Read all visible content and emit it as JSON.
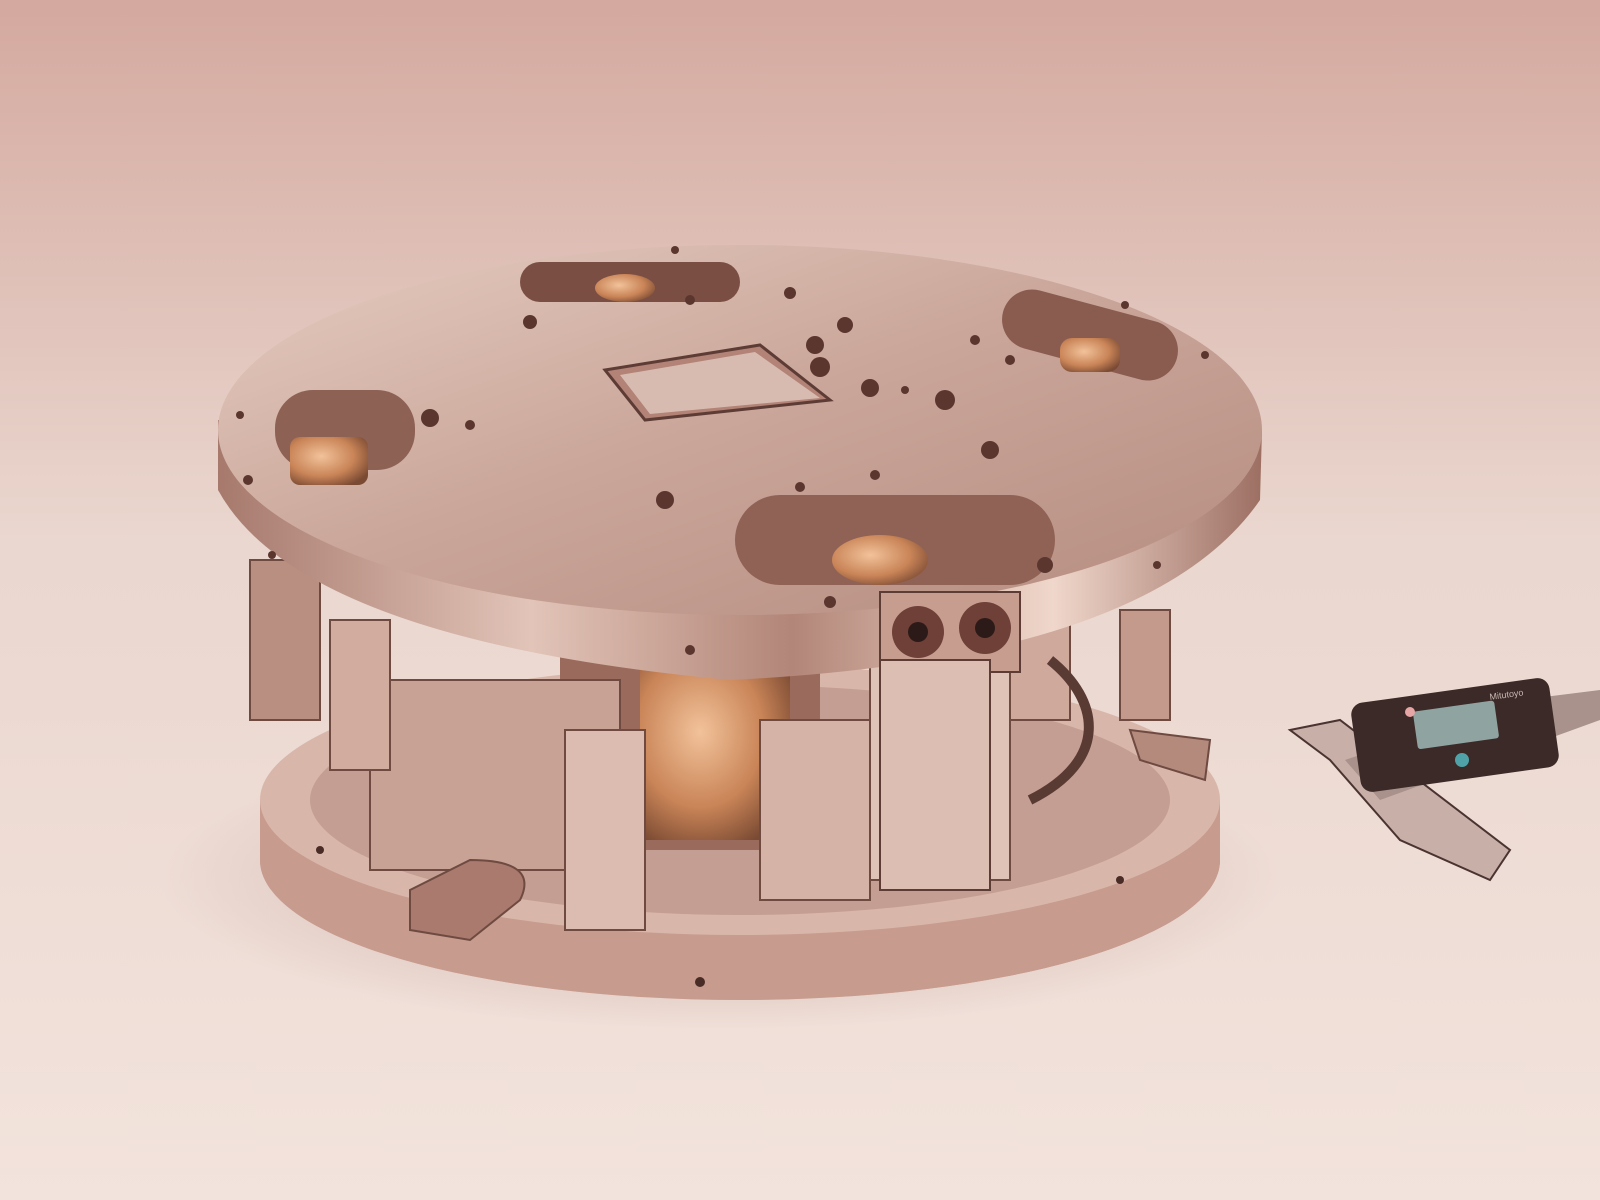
{
  "scene": {
    "description_free": true,
    "colors": {
      "background_top": "#d9b0a6",
      "background_bottom": "#f1e2da",
      "metal_light": "#e3c8bc",
      "metal_mid": "#b48a7e",
      "metal_dark": "#5e3c36",
      "copper": "#c98457",
      "caliper_body": "#3b2a28",
      "lcd": "#8fa3a1"
    }
  },
  "caliper": {
    "display_text": "",
    "brand_text": "Mitutoyo"
  }
}
